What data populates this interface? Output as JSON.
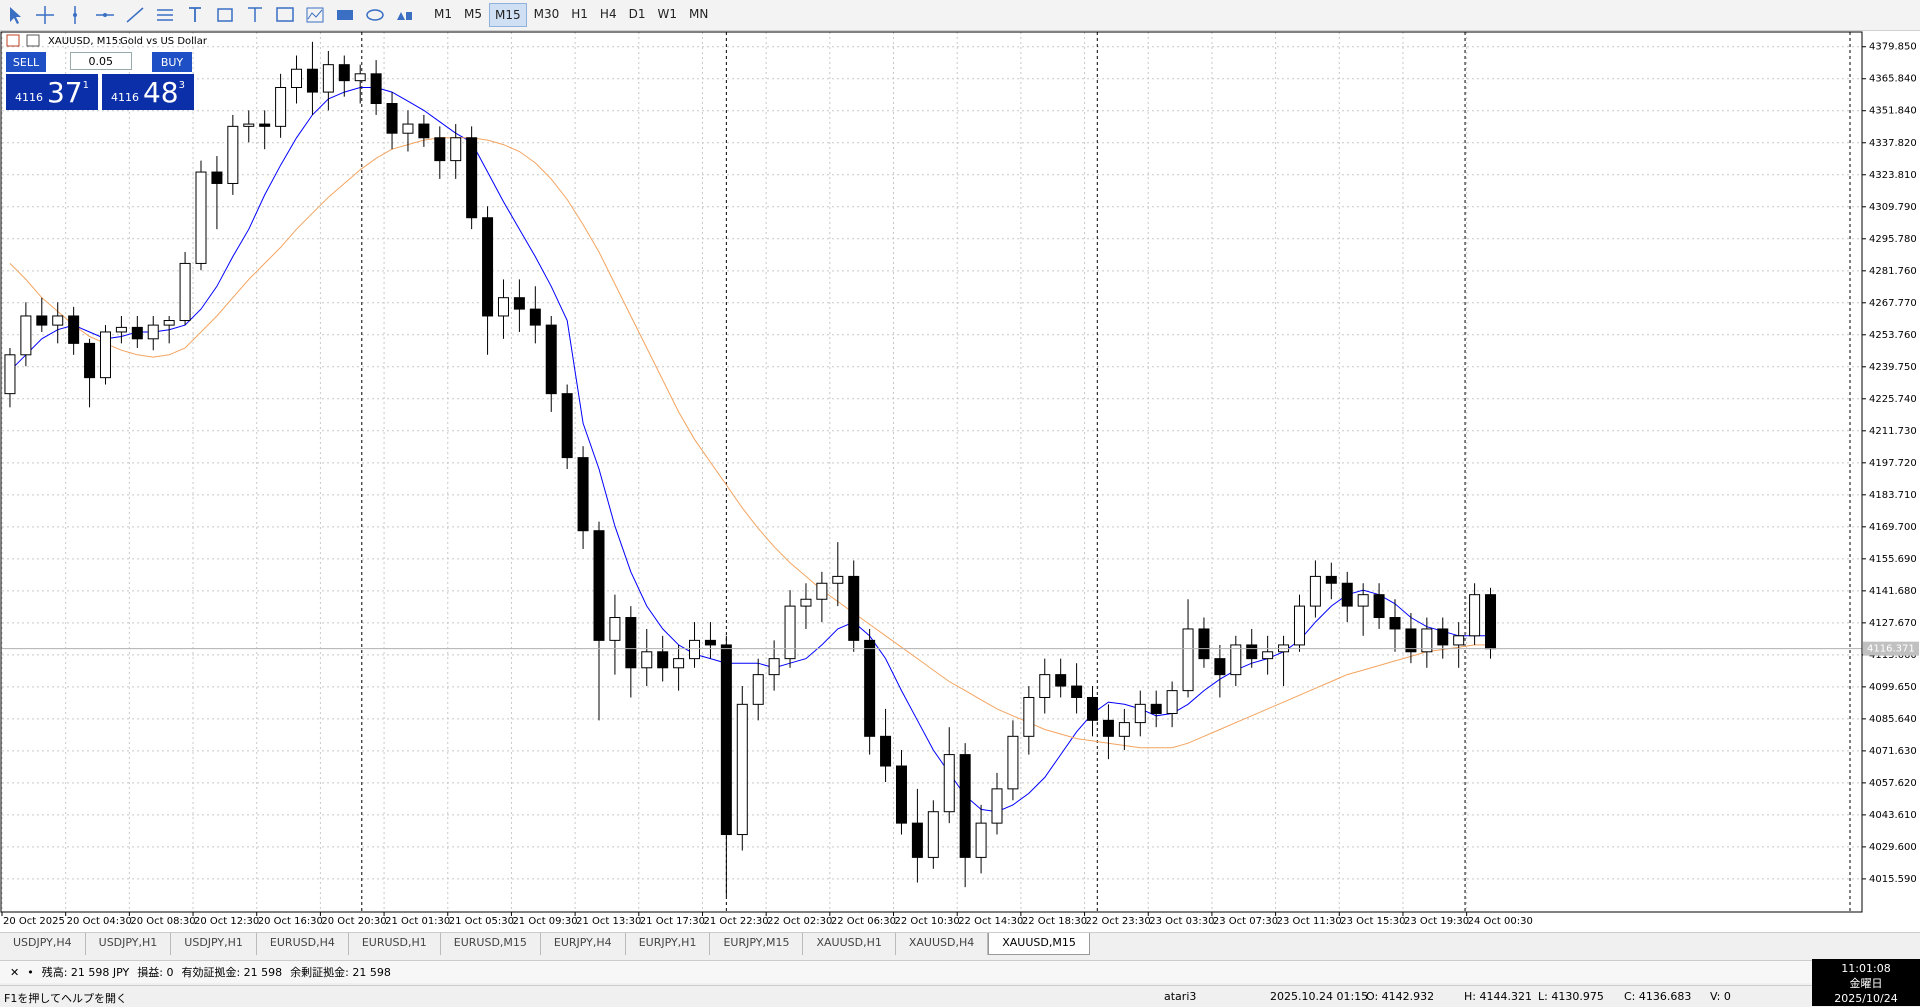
{
  "toolbar": {
    "timeframes": [
      "M1",
      "M5",
      "M15",
      "M30",
      "H1",
      "H4",
      "D1",
      "W1",
      "MN"
    ],
    "active": 2
  },
  "chart_data": {
    "type": "candlestick",
    "title": "XAUUSD, M15:",
    "subtitle": "Gold vs US Dollar",
    "categories": [
      "20 Oct 2025",
      null,
      null,
      null,
      "20 Oct 04:30",
      null,
      null,
      null,
      "20 Oct 08:30",
      null,
      null,
      null,
      "20 Oct 12:30",
      null,
      null,
      null,
      "20 Oct 16:30",
      null,
      null,
      null,
      "20 Oct 20:30",
      null,
      null,
      null,
      "21 Oct 01:30",
      null,
      null,
      null,
      "21 Oct 05:30",
      null,
      null,
      null,
      "21 Oct 09:30",
      null,
      null,
      null,
      "21 Oct 13:30",
      null,
      null,
      null,
      "21 Oct 17:30",
      null,
      null,
      null,
      "21 Oct 22:30",
      null,
      null,
      null,
      "22 Oct 02:30",
      null,
      null,
      null,
      "22 Oct 06:30",
      null,
      null,
      null,
      "22 Oct 10:30",
      null,
      null,
      null,
      "22 Oct 14:30",
      null,
      null,
      null,
      "22 Oct 18:30",
      null,
      null,
      null,
      "22 Oct 23:30",
      null,
      null,
      null,
      "23 Oct 03:30",
      null,
      null,
      null,
      "23 Oct 07:30",
      null,
      null,
      null,
      "23 Oct 11:30",
      null,
      null,
      null,
      "23 Oct 15:30",
      null,
      null,
      null,
      "23 Oct 19:30",
      null,
      null,
      null,
      "24 Oct 00:30",
      null
    ],
    "open": [
      4228,
      4245,
      4262,
      4258,
      4262,
      4250,
      4235,
      4255,
      4257,
      4252,
      4258,
      4260,
      4285,
      4325,
      4320,
      4345,
      4346,
      4345,
      4362,
      4370,
      4360,
      4372,
      4365,
      4368,
      4355,
      4342,
      4346,
      4340,
      4330,
      4340,
      4305,
      4262,
      4270,
      4265,
      4258,
      4228,
      4200,
      4168,
      4120,
      4130,
      4108,
      4115,
      4108,
      4112,
      4120,
      4118,
      4035,
      4092,
      4105,
      4112,
      4135,
      4138,
      4145,
      4148,
      4120,
      4078,
      4065,
      4040,
      4025,
      4045,
      4070,
      4025,
      4040,
      4055,
      4078,
      4095,
      4105,
      4100,
      4095,
      4085,
      4078,
      4084,
      4092,
      4088,
      4098,
      4125,
      4112,
      4105,
      4118,
      4112,
      4115,
      4118,
      4135,
      4148,
      4145,
      4135,
      4140,
      4130,
      4125,
      4115,
      4125,
      4118,
      4122,
      4140
    ],
    "high": [
      4248,
      4268,
      4270,
      4268,
      4266,
      4252,
      4258,
      4262,
      4262,
      4262,
      4262,
      4290,
      4330,
      4332,
      4350,
      4352,
      4352,
      4368,
      4376,
      4382,
      4378,
      4376,
      4372,
      4374,
      4360,
      4352,
      4350,
      4345,
      4346,
      4345,
      4310,
      4278,
      4278,
      4275,
      4262,
      4232,
      4205,
      4172,
      4140,
      4135,
      4125,
      4122,
      4118,
      4128,
      4128,
      4122,
      4100,
      4112,
      4120,
      4142,
      4145,
      4150,
      4163,
      4155,
      4125,
      4090,
      4072,
      4055,
      4050,
      4082,
      4075,
      4048,
      4062,
      4085,
      4100,
      4112,
      4112,
      4110,
      4100,
      4092,
      4090,
      4098,
      4098,
      4102,
      4138,
      4130,
      4118,
      4122,
      4125,
      4122,
      4122,
      4140,
      4155,
      4154,
      4150,
      4145,
      4145,
      4138,
      4132,
      4130,
      4130,
      4128,
      4145,
      4143
    ],
    "low": [
      4222,
      4240,
      4255,
      4250,
      4245,
      4222,
      4232,
      4250,
      4248,
      4247,
      4250,
      4258,
      4282,
      4300,
      4315,
      4338,
      4335,
      4340,
      4355,
      4350,
      4352,
      4358,
      4355,
      4350,
      4335,
      4334,
      4336,
      4322,
      4322,
      4300,
      4245,
      4252,
      4255,
      4250,
      4220,
      4195,
      4160,
      4085,
      4105,
      4095,
      4100,
      4102,
      4098,
      4108,
      4112,
      4008,
      4028,
      4085,
      4098,
      4108,
      4125,
      4128,
      4135,
      4115,
      4070,
      4058,
      4035,
      4014,
      4020,
      4040,
      4012,
      4018,
      4035,
      4050,
      4070,
      4088,
      4095,
      4088,
      4078,
      4068,
      4072,
      4078,
      4082,
      4082,
      4095,
      4108,
      4095,
      4100,
      4108,
      4105,
      4100,
      4115,
      4130,
      4138,
      4128,
      4122,
      4125,
      4115,
      4110,
      4108,
      4112,
      4108,
      4118,
      4112
    ],
    "close": [
      4245,
      4262,
      4258,
      4262,
      4250,
      4235,
      4255,
      4257,
      4252,
      4258,
      4260,
      4285,
      4325,
      4320,
      4345,
      4346,
      4345,
      4362,
      4370,
      4360,
      4372,
      4365,
      4368,
      4355,
      4342,
      4346,
      4340,
      4330,
      4340,
      4305,
      4262,
      4270,
      4265,
      4258,
      4228,
      4200,
      4168,
      4120,
      4130,
      4108,
      4115,
      4108,
      4112,
      4120,
      4118,
      4035,
      4092,
      4105,
      4112,
      4135,
      4138,
      4145,
      4148,
      4120,
      4078,
      4065,
      4040,
      4025,
      4045,
      4070,
      4025,
      4040,
      4055,
      4078,
      4095,
      4105,
      4100,
      4095,
      4085,
      4078,
      4084,
      4092,
      4088,
      4098,
      4125,
      4112,
      4105,
      4118,
      4112,
      4115,
      4118,
      4135,
      4148,
      4145,
      4135,
      4140,
      4130,
      4125,
      4115,
      4125,
      4118,
      4122,
      4140,
      4116.37
    ],
    "up_color": "#ffffff",
    "down_color": "#000000",
    "series": [
      {
        "color": "#0000ff",
        "values": [
          4238,
          4245,
          4252,
          4256,
          4258,
          4255,
          4252,
          4253,
          4255,
          4255,
          4256,
          4258,
          4265,
          4275,
          4288,
          4300,
          4315,
          4328,
          4340,
          4350,
          4357,
          4360,
          4362,
          4362,
          4360,
          4356,
          4352,
          4347,
          4342,
          4338,
          4325,
          4312,
          4300,
          4288,
          4275,
          4260,
          4215,
          4195,
          4170,
          4150,
          4135,
          4125,
          4118,
          4114,
          4112,
          4110,
          4110,
          4110,
          4108,
          4110,
          4112,
          4118,
          4125,
          4128,
          4122,
          4112,
          4098,
          4085,
          4072,
          4062,
          4052,
          4046,
          4045,
          4048,
          4053,
          4060,
          4070,
          4080,
          4088,
          4093,
          4092,
          4090,
          4087,
          4088,
          4092,
          4098,
          4103,
          4107,
          4110,
          4112,
          4115,
          4120,
          4128,
          4135,
          4140,
          4142,
          4140,
          4136,
          4130,
          4126,
          4124,
          4122,
          4122,
          4122
        ]
      },
      {
        "color": "#f4a460",
        "values": [
          4285,
          4278,
          4270,
          4264,
          4258,
          4253,
          4250,
          4247,
          4245,
          4244,
          4245,
          4248,
          4255,
          4262,
          4270,
          4278,
          4285,
          4292,
          4300,
          4307,
          4314,
          4320,
          4326,
          4331,
          4335,
          4337,
          4339,
          4340,
          4340,
          4340,
          4339,
          4337,
          4334,
          4329,
          4322,
          4313,
          4302,
          4290,
          4276,
          4262,
          4248,
          4234,
          4220,
          4208,
          4198,
          4188,
          4178,
          4169,
          4161,
          4154,
          4148,
          4142,
          4137,
          4132,
          4127,
          4122,
          4117,
          4112,
          4107,
          4102,
          4098,
          4094,
          4090,
          4087,
          4084,
          4081,
          4079,
          4077,
          4076,
          4075,
          4074,
          4073,
          4073,
          4073,
          4075,
          4078,
          4081,
          4084,
          4087,
          4090,
          4093,
          4096,
          4099,
          4102,
          4105,
          4107,
          4109,
          4111,
          4113,
          4115,
          4116,
          4117,
          4118,
          4118
        ]
      }
    ],
    "ylim": [
      4001.1,
      4386.3
    ],
    "yticks": [
      {
        "value": 4379.85,
        "label": "4379.850"
      },
      {
        "value": 4365.84,
        "label": "4365.840"
      },
      {
        "value": 4351.84,
        "label": "4351.840"
      },
      {
        "value": 4337.82,
        "label": "4337.820"
      },
      {
        "value": 4323.81,
        "label": "4323.810"
      },
      {
        "value": 4309.79,
        "label": "4309.790"
      },
      {
        "value": 4295.78,
        "label": "4295.780"
      },
      {
        "value": 4281.76,
        "label": "4281.760"
      },
      {
        "value": 4267.77,
        "label": "4267.770"
      },
      {
        "value": 4253.76,
        "label": "4253.760"
      },
      {
        "value": 4239.75,
        "label": "4239.750"
      },
      {
        "value": 4225.74,
        "label": "4225.740"
      },
      {
        "value": 4211.73,
        "label": "4211.730"
      },
      {
        "value": 4197.72,
        "label": "4197.720"
      },
      {
        "value": 4183.71,
        "label": "4183.710"
      },
      {
        "value": 4169.7,
        "label": "4169.700"
      },
      {
        "value": 4155.69,
        "label": "4155.690"
      },
      {
        "value": 4141.68,
        "label": "4141.680"
      },
      {
        "value": 4127.67,
        "label": "4127.670"
      },
      {
        "value": 4113.66,
        "label": "4113.660"
      },
      {
        "value": 4099.65,
        "label": "4099.650"
      },
      {
        "value": 4085.64,
        "label": "4085.640"
      },
      {
        "value": 4071.63,
        "label": "4071.630"
      },
      {
        "value": 4057.62,
        "label": "4057.620"
      },
      {
        "value": 4043.61,
        "label": "4043.610"
      },
      {
        "value": 4029.6,
        "label": "4029.600"
      },
      {
        "value": 4015.59,
        "label": "4015.590"
      }
    ],
    "grid": true,
    "bid": 4116.371
  },
  "trade_panel": {
    "sell": "SELL",
    "buy": "BUY",
    "lot": "0.05",
    "sell_price": {
      "prefix": "4116",
      "big": "37",
      "sup": "1"
    },
    "buy_price": {
      "prefix": "4116",
      "big": "48",
      "sup": "3"
    }
  },
  "tabs": {
    "items": [
      "USDJPY,H4",
      "USDJPY,H1",
      "USDJPY,H1",
      "EURUSD,H4",
      "EURUSD,H1",
      "EURUSD,M15",
      "EURJPY,H4",
      "EURJPY,H1",
      "EURJPY,M15",
      "XAUUSD,H1",
      "XAUUSD,H4",
      "XAUUSD,M15"
    ],
    "active": 11
  },
  "account": {
    "balance": "残高: 21 598 JPY",
    "profit": "損益: 0",
    "equity": "有効証拠金: 21 598",
    "free_margin": "余剰証拠金: 21 598"
  },
  "status": {
    "help": "F1を押してヘルプを開く",
    "profile": "atari3",
    "time": "2025.10.24 01:15",
    "open": "O: 4142.932",
    "high": "H: 4144.321",
    "low": "L: 4130.975",
    "close": "C: 4136.683",
    "volume": "V: 0"
  },
  "clock": {
    "time": "11:01:08",
    "weekday": "金曜日",
    "date": "2025/10/24"
  }
}
